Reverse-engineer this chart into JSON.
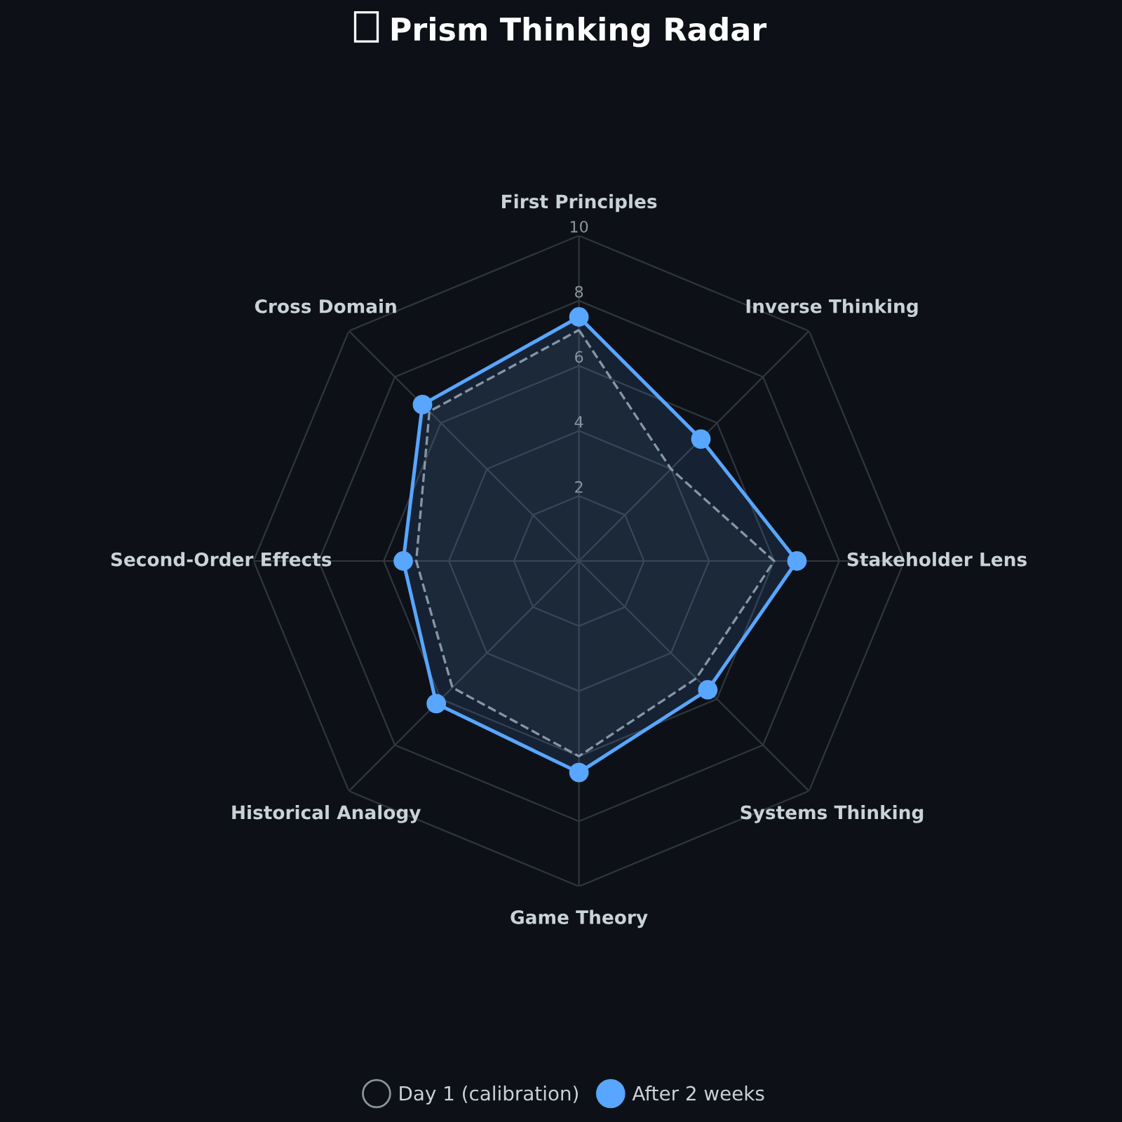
{
  "chart_data": {
    "type": "radar",
    "title": "Prism Thinking Radar",
    "categories": [
      "First Principles",
      "Inverse Thinking",
      "Stakeholder Lens",
      "Systems Thinking",
      "Game Theory",
      "Historical Analogy",
      "Second-Order Effects",
      "Cross Domain"
    ],
    "series": [
      {
        "name": "Day 1 (calibration)",
        "color": "#8b949e",
        "values": [
          7.1,
          4.0,
          6.0,
          5.1,
          6.0,
          5.5,
          5.0,
          6.5
        ],
        "line_style": "dashed",
        "marker": "none"
      },
      {
        "name": "After 2 weeks",
        "color": "#58a6ff",
        "values": [
          7.5,
          5.3,
          6.7,
          5.6,
          6.5,
          6.2,
          5.4,
          6.8
        ],
        "line_style": "solid",
        "marker": "circle"
      }
    ],
    "ylim": [
      0,
      10
    ],
    "yticks": [
      2,
      4,
      6,
      8,
      10
    ],
    "grid": true,
    "legend": "bottom"
  }
}
